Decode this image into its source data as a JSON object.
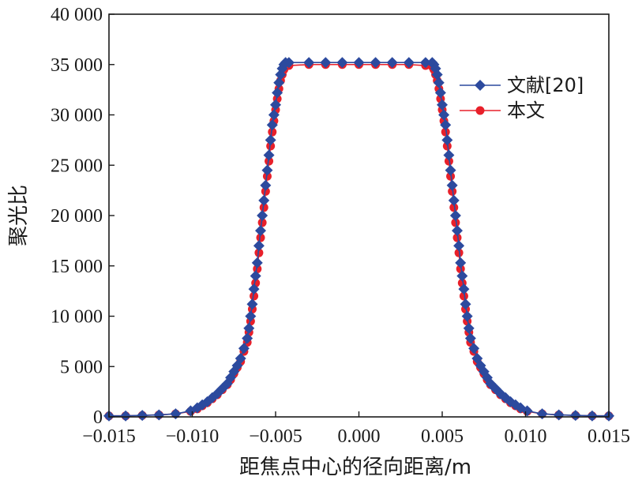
{
  "chart_data": {
    "type": "line",
    "xlabel": "距焦点中心的径向距离/m",
    "ylabel": "聚光比",
    "xlim": [
      -0.015,
      0.015
    ],
    "ylim": [
      0,
      40000
    ],
    "xticks": [
      -0.015,
      -0.01,
      -0.005,
      0.0,
      0.005,
      0.01,
      0.015
    ],
    "xtick_labels": [
      "−0.015",
      "−0.010",
      "−0.005",
      "0.000",
      "0.005",
      "0.010",
      "0.015"
    ],
    "yticks": [
      0,
      5000,
      10000,
      15000,
      20000,
      25000,
      30000,
      35000,
      40000
    ],
    "ytick_labels": [
      "0",
      "5 000",
      "10 000",
      "15 000",
      "20 000",
      "25 000",
      "30 000",
      "35 000",
      "40 000"
    ],
    "grid": false,
    "legend_position": "top-right",
    "series": [
      {
        "name": "文献[20]",
        "color": "#2c4a9e",
        "marker": "diamond",
        "x": [
          -0.015,
          -0.014,
          -0.013,
          -0.012,
          -0.011,
          -0.0101,
          -0.0097,
          -0.0094,
          -0.0091,
          -0.0088,
          -0.0085,
          -0.0082,
          -0.0079,
          -0.0077,
          -0.0075,
          -0.0073,
          -0.0071,
          -0.0069,
          -0.0067,
          -0.0066,
          -0.0065,
          -0.0064,
          -0.0063,
          -0.0062,
          -0.0061,
          -0.006,
          -0.0059,
          -0.0058,
          -0.0057,
          -0.0056,
          -0.0055,
          -0.0054,
          -0.0053,
          -0.0052,
          -0.0051,
          -0.005,
          -0.0049,
          -0.0048,
          -0.0047,
          -0.0046,
          -0.0045,
          -0.0044,
          -0.0042,
          -0.003,
          -0.002,
          -0.001,
          0.0,
          0.001,
          0.002,
          0.003,
          0.004,
          0.0044,
          0.0045,
          0.0046,
          0.0047,
          0.0048,
          0.0049,
          0.005,
          0.0051,
          0.0052,
          0.0053,
          0.0054,
          0.0055,
          0.0056,
          0.0057,
          0.0058,
          0.0059,
          0.006,
          0.0061,
          0.0062,
          0.0063,
          0.0064,
          0.0065,
          0.0066,
          0.0067,
          0.0069,
          0.0071,
          0.0073,
          0.0075,
          0.0077,
          0.0079,
          0.0082,
          0.0085,
          0.0088,
          0.0091,
          0.0094,
          0.0097,
          0.0101,
          0.011,
          0.012,
          0.013,
          0.014,
          0.015
        ],
        "values": [
          100,
          100,
          150,
          200,
          300,
          600,
          900,
          1200,
          1500,
          1900,
          2300,
          2800,
          3300,
          3900,
          4500,
          5100,
          5800,
          6800,
          7800,
          8800,
          10000,
          11200,
          12700,
          14000,
          15300,
          17000,
          18500,
          20000,
          21500,
          23000,
          24500,
          26000,
          27500,
          29000,
          30000,
          31000,
          32200,
          33200,
          34000,
          34600,
          35000,
          35200,
          35200,
          35200,
          35200,
          35200,
          35200,
          35200,
          35200,
          35200,
          35200,
          35200,
          35000,
          34600,
          34000,
          33200,
          32200,
          31000,
          30000,
          29000,
          27500,
          26000,
          24500,
          23000,
          21500,
          20000,
          18500,
          17000,
          15300,
          14000,
          12700,
          11200,
          10000,
          8800,
          7800,
          6800,
          5800,
          5100,
          4500,
          3900,
          3300,
          2800,
          2300,
          1900,
          1500,
          1200,
          900,
          600,
          300,
          200,
          150,
          100,
          100
        ]
      },
      {
        "name": "本文",
        "color": "#e8202a",
        "marker": "circle",
        "x": [
          -0.015,
          -0.014,
          -0.013,
          -0.012,
          -0.011,
          -0.0101,
          -0.0097,
          -0.0094,
          -0.0091,
          -0.0088,
          -0.0085,
          -0.0082,
          -0.0079,
          -0.0077,
          -0.0075,
          -0.0073,
          -0.0071,
          -0.0069,
          -0.0067,
          -0.0066,
          -0.0065,
          -0.0064,
          -0.0063,
          -0.0062,
          -0.0061,
          -0.006,
          -0.0059,
          -0.0058,
          -0.0057,
          -0.0056,
          -0.0055,
          -0.0054,
          -0.0053,
          -0.0052,
          -0.0051,
          -0.005,
          -0.0049,
          -0.0048,
          -0.0047,
          -0.0046,
          -0.0045,
          -0.0044,
          -0.0042,
          -0.003,
          -0.002,
          -0.001,
          0.0,
          0.001,
          0.002,
          0.003,
          0.004,
          0.0044,
          0.0045,
          0.0046,
          0.0047,
          0.0048,
          0.0049,
          0.005,
          0.0051,
          0.0052,
          0.0053,
          0.0054,
          0.0055,
          0.0056,
          0.0057,
          0.0058,
          0.0059,
          0.006,
          0.0061,
          0.0062,
          0.0063,
          0.0064,
          0.0065,
          0.0066,
          0.0067,
          0.0069,
          0.0071,
          0.0073,
          0.0075,
          0.0077,
          0.0079,
          0.0082,
          0.0085,
          0.0088,
          0.0091,
          0.0094,
          0.0097,
          0.0101,
          0.011,
          0.012,
          0.013,
          0.014,
          0.015
        ],
        "values": [
          100,
          100,
          150,
          200,
          300,
          550,
          800,
          1100,
          1400,
          1800,
          2200,
          2700,
          3200,
          3700,
          4300,
          4900,
          5500,
          6500,
          7400,
          8400,
          9500,
          10700,
          12000,
          13300,
          14700,
          16300,
          17800,
          19300,
          20800,
          22400,
          23900,
          25400,
          26900,
          28300,
          29400,
          30500,
          31600,
          32600,
          33400,
          34000,
          34500,
          34800,
          34900,
          35000,
          35000,
          35000,
          35000,
          35000,
          35000,
          35000,
          34900,
          34800,
          34500,
          34000,
          33400,
          32600,
          31600,
          30500,
          29400,
          28300,
          26900,
          25400,
          23900,
          22400,
          20800,
          19300,
          17800,
          16300,
          14700,
          13300,
          12000,
          10700,
          9500,
          8400,
          7400,
          6500,
          5500,
          4900,
          4300,
          3700,
          3200,
          2700,
          2200,
          1800,
          1400,
          1100,
          800,
          550,
          300,
          200,
          150,
          100,
          100
        ]
      }
    ]
  }
}
